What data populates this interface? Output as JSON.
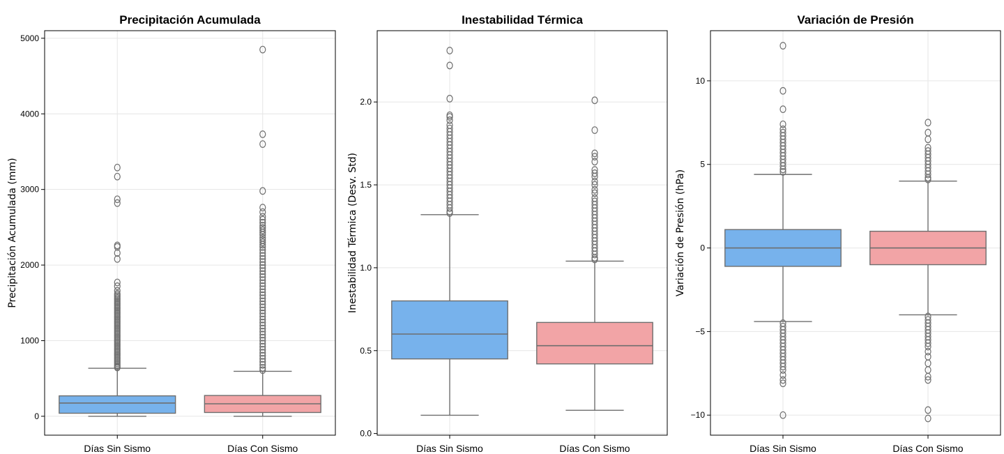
{
  "chart_data": [
    {
      "type": "box",
      "title": "Precipitación Acumulada",
      "ylabel": "Precipitación Acumulada (mm)",
      "ylim": [
        -250,
        5100
      ],
      "yticks": [
        0,
        1000,
        2000,
        3000,
        4000,
        5000
      ],
      "categories": [
        "Días Sin Sismo",
        "Días Con Sismo"
      ],
      "colors": [
        "#77b2ec",
        "#f2a4a6"
      ],
      "grid": true,
      "boxes": [
        {
          "name": "Días Sin Sismo",
          "whisker_low": 0,
          "q1": 40,
          "median": 175,
          "q3": 270,
          "whisker_high": 635,
          "outliers": [
            3290,
            3170,
            2870,
            2820,
            2260,
            2240,
            2160,
            2080,
            1770,
            1720,
            1660,
            1620,
            1600,
            1580,
            1560,
            1540,
            1520,
            1500,
            1480,
            1460,
            1440,
            1420,
            1400,
            1380,
            1360,
            1340,
            1320,
            1300,
            1280,
            1260,
            1240,
            1220,
            1200,
            1180,
            1160,
            1140,
            1120,
            1100,
            1080,
            1060,
            1040,
            1020,
            1000,
            980,
            960,
            940,
            920,
            900,
            880,
            860,
            840,
            820,
            800,
            780,
            760,
            740,
            720,
            700,
            680,
            660,
            645
          ]
        },
        {
          "name": "Días Con Sismo",
          "whisker_low": 0,
          "q1": 50,
          "median": 165,
          "q3": 275,
          "whisker_high": 595,
          "outliers": [
            4850,
            3730,
            3600,
            2980,
            2760,
            2700,
            2640,
            2600,
            2560,
            2520,
            2490,
            2460,
            2430,
            2400,
            2360,
            2330,
            2300,
            2270,
            2240,
            2200,
            2160,
            2120,
            2080,
            2040,
            2000,
            1960,
            1920,
            1880,
            1840,
            1800,
            1760,
            1720,
            1680,
            1640,
            1600,
            1560,
            1520,
            1480,
            1440,
            1400,
            1360,
            1320,
            1280,
            1240,
            1200,
            1160,
            1120,
            1080,
            1040,
            1000,
            960,
            920,
            880,
            840,
            800,
            760,
            720,
            680,
            640,
            610
          ]
        }
      ]
    },
    {
      "type": "box",
      "title": "Inestabilidad Térmica",
      "ylabel": "Inestabilidad Térmica (Desv. Std)",
      "ylim": [
        -0.01,
        2.43
      ],
      "yticks": [
        0.0,
        0.5,
        1.0,
        1.5,
        2.0
      ],
      "categories": [
        "Días Sin Sismo",
        "Días Con Sismo"
      ],
      "colors": [
        "#77b2ec",
        "#f2a4a6"
      ],
      "grid": true,
      "boxes": [
        {
          "name": "Días Sin Sismo",
          "whisker_low": 0.11,
          "q1": 0.45,
          "median": 0.6,
          "q3": 0.8,
          "whisker_high": 1.32,
          "outliers": [
            2.31,
            2.22,
            2.02,
            1.92,
            1.91,
            1.89,
            1.86,
            1.84,
            1.82,
            1.8,
            1.78,
            1.76,
            1.74,
            1.72,
            1.7,
            1.68,
            1.66,
            1.64,
            1.62,
            1.6,
            1.58,
            1.56,
            1.54,
            1.52,
            1.5,
            1.48,
            1.46,
            1.44,
            1.42,
            1.4,
            1.38,
            1.36,
            1.34,
            1.33
          ]
        },
        {
          "name": "Días Con Sismo",
          "whisker_low": 0.14,
          "q1": 0.42,
          "median": 0.53,
          "q3": 0.67,
          "whisker_high": 1.04,
          "outliers": [
            2.01,
            1.83,
            1.69,
            1.67,
            1.64,
            1.59,
            1.57,
            1.55,
            1.52,
            1.5,
            1.47,
            1.45,
            1.42,
            1.4,
            1.38,
            1.36,
            1.34,
            1.32,
            1.3,
            1.28,
            1.26,
            1.24,
            1.22,
            1.2,
            1.18,
            1.16,
            1.14,
            1.12,
            1.1,
            1.08,
            1.06,
            1.05
          ]
        }
      ]
    },
    {
      "type": "box",
      "title": "Variación de Presión",
      "ylabel": "Variación de Presión (hPa)",
      "ylim": [
        -11.2,
        13.0
      ],
      "yticks": [
        -10,
        -5,
        0,
        5,
        10
      ],
      "categories": [
        "Días Sin Sismo",
        "Días Con Sismo"
      ],
      "colors": [
        "#77b2ec",
        "#f2a4a6"
      ],
      "grid": true,
      "boxes": [
        {
          "name": "Días Sin Sismo",
          "whisker_low": -4.4,
          "q1": -1.1,
          "median": 0.0,
          "q3": 1.1,
          "whisker_high": 4.4,
          "outliers": [
            12.1,
            9.4,
            8.3,
            7.4,
            7.1,
            6.9,
            6.7,
            6.5,
            6.3,
            6.1,
            5.9,
            5.7,
            5.5,
            5.3,
            5.1,
            4.9,
            4.7,
            4.55,
            -4.5,
            -4.7,
            -4.9,
            -5.1,
            -5.3,
            -5.5,
            -5.7,
            -5.9,
            -6.1,
            -6.3,
            -6.5,
            -6.7,
            -6.9,
            -7.1,
            -7.3,
            -7.6,
            -7.9,
            -8.1,
            -10.0
          ]
        },
        {
          "name": "Días Con Sismo",
          "whisker_low": -4.0,
          "q1": -1.0,
          "median": 0.0,
          "q3": 1.0,
          "whisker_high": 4.0,
          "outliers": [
            7.5,
            6.9,
            6.5,
            6.0,
            5.8,
            5.6,
            5.4,
            5.2,
            5.0,
            4.8,
            4.6,
            4.4,
            4.2,
            4.1,
            -4.1,
            -4.3,
            -4.5,
            -4.7,
            -4.9,
            -5.1,
            -5.3,
            -5.5,
            -5.7,
            -5.9,
            -6.2,
            -6.5,
            -6.9,
            -7.3,
            -7.7,
            -7.9,
            -9.7,
            -10.2
          ]
        }
      ]
    }
  ]
}
